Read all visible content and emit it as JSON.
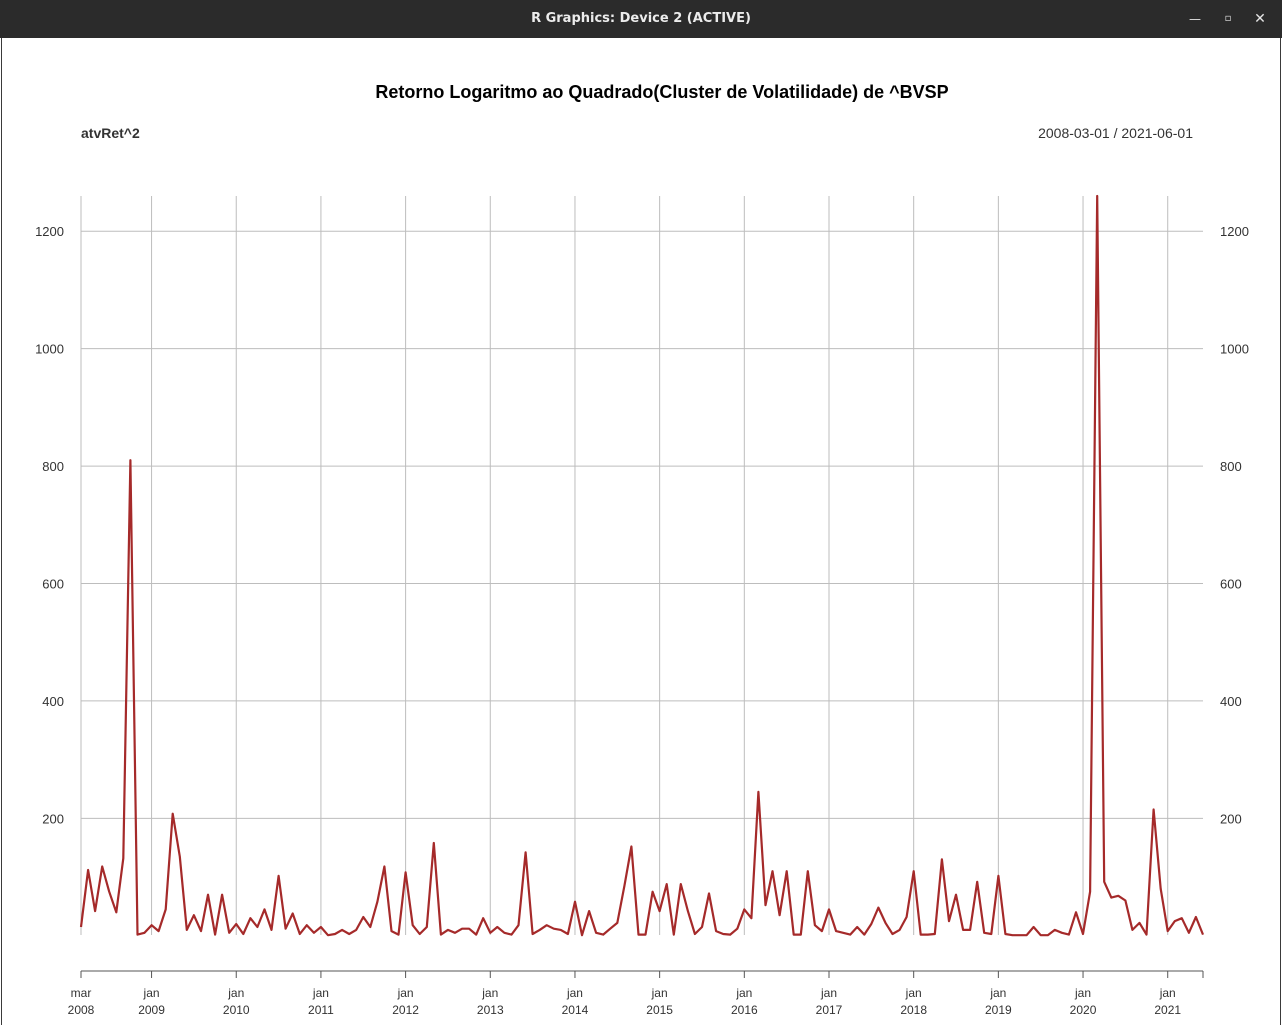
{
  "window": {
    "title": "R Graphics: Device 2 (ACTIVE)",
    "minimize_icon": "minimize-icon",
    "maximize_icon": "maximize-icon",
    "close_icon": "close-icon"
  },
  "chart_data": {
    "type": "line",
    "title": "Retorno Logaritmo ao Quadrado(Cluster de Volatilidade) de ^BVSP",
    "series_label": "atvRet^2",
    "date_range": "2008-03-01 / 2021-06-01",
    "start": "2008-03",
    "end": "2021-06",
    "line_color": "#a52a2a",
    "grid": true,
    "ylim": [
      -60,
      1260
    ],
    "y_ticks": [
      200,
      400,
      600,
      800,
      1000,
      1200
    ],
    "x_ticks": [
      {
        "date": "2008-03",
        "month": "mar",
        "year": "2008"
      },
      {
        "date": "2009-01",
        "month": "jan",
        "year": "2009"
      },
      {
        "date": "2010-01",
        "month": "jan",
        "year": "2010"
      },
      {
        "date": "2011-01",
        "month": "jan",
        "year": "2011"
      },
      {
        "date": "2012-01",
        "month": "jan",
        "year": "2012"
      },
      {
        "date": "2013-01",
        "month": "jan",
        "year": "2013"
      },
      {
        "date": "2014-01",
        "month": "jan",
        "year": "2014"
      },
      {
        "date": "2015-01",
        "month": "jan",
        "year": "2015"
      },
      {
        "date": "2016-01",
        "month": "jan",
        "year": "2016"
      },
      {
        "date": "2017-01",
        "month": "jan",
        "year": "2017"
      },
      {
        "date": "2018-01",
        "month": "jan",
        "year": "2018"
      },
      {
        "date": "2019-01",
        "month": "jan",
        "year": "2019"
      },
      {
        "date": "2020-01",
        "month": "jan",
        "year": "2020"
      },
      {
        "date": "2021-01",
        "month": "jan",
        "year": "2021"
      }
    ],
    "values": [
      15,
      112,
      42,
      118,
      75,
      40,
      132,
      810,
      2,
      5,
      18,
      8,
      45,
      208,
      135,
      10,
      35,
      8,
      70,
      2,
      70,
      5,
      20,
      3,
      30,
      15,
      45,
      10,
      102,
      12,
      38,
      3,
      18,
      5,
      15,
      1,
      3,
      10,
      3,
      10,
      32,
      15,
      58,
      118,
      8,
      2,
      108,
      18,
      3,
      15,
      158,
      2,
      10,
      5,
      12,
      12,
      2,
      30,
      5,
      15,
      5,
      2,
      18,
      142,
      3,
      10,
      18,
      12,
      10,
      3,
      58,
      1,
      42,
      5,
      2,
      12,
      22,
      85,
      152,
      2,
      2,
      75,
      42,
      88,
      2,
      88,
      42,
      3,
      15,
      72,
      8,
      3,
      2,
      12,
      45,
      30,
      245,
      52,
      110,
      35,
      110,
      2,
      2,
      110,
      18,
      8,
      45,
      8,
      5,
      2,
      15,
      2,
      20,
      48,
      22,
      3,
      10,
      32,
      110,
      2,
      2,
      3,
      130,
      25,
      70,
      10,
      10,
      92,
      5,
      3,
      102,
      3,
      1,
      1,
      1,
      15,
      1,
      1,
      10,
      5,
      2,
      40,
      3,
      75,
      1260,
      92,
      65,
      68,
      60,
      10,
      22,
      2,
      215,
      80,
      8,
      25,
      30,
      5,
      32,
      2
    ]
  }
}
